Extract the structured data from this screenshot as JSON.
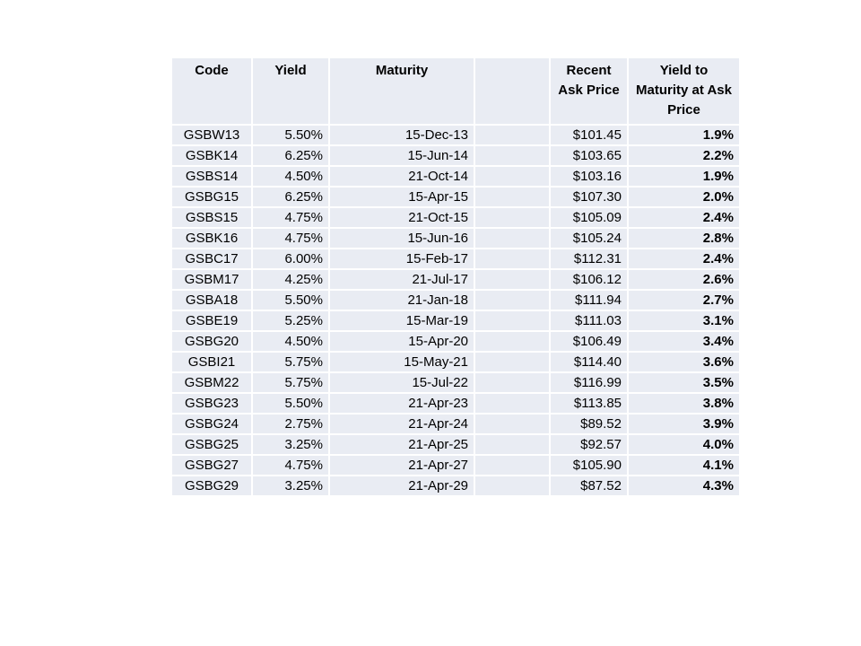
{
  "colors": {
    "page_background": "#FFFFFF",
    "cell_background": "#E9ECF3",
    "grid_lines": "#FFFFFF",
    "text": "#000000"
  },
  "chart_data": {
    "type": "table",
    "columns": [
      {
        "id": "code",
        "label": "Code"
      },
      {
        "id": "yield",
        "label": "Yield"
      },
      {
        "id": "maturity",
        "label": "Maturity"
      },
      {
        "id": "spacer",
        "label": ""
      },
      {
        "id": "ask_price",
        "label": "Recent Ask Price"
      },
      {
        "id": "ytm",
        "label": "Yield to Maturity at Ask Price"
      }
    ],
    "rows": [
      {
        "code": "GSBW13",
        "yield": "5.50%",
        "maturity": "15-Dec-13",
        "spacer": "",
        "ask_price": "$101.45",
        "ytm": "1.9%"
      },
      {
        "code": "GSBK14",
        "yield": "6.25%",
        "maturity": "15-Jun-14",
        "spacer": "",
        "ask_price": "$103.65",
        "ytm": "2.2%"
      },
      {
        "code": "GSBS14",
        "yield": "4.50%",
        "maturity": "21-Oct-14",
        "spacer": "",
        "ask_price": "$103.16",
        "ytm": "1.9%"
      },
      {
        "code": "GSBG15",
        "yield": "6.25%",
        "maturity": "15-Apr-15",
        "spacer": "",
        "ask_price": "$107.30",
        "ytm": "2.0%"
      },
      {
        "code": "GSBS15",
        "yield": "4.75%",
        "maturity": "21-Oct-15",
        "spacer": "",
        "ask_price": "$105.09",
        "ytm": "2.4%"
      },
      {
        "code": "GSBK16",
        "yield": "4.75%",
        "maturity": "15-Jun-16",
        "spacer": "",
        "ask_price": "$105.24",
        "ytm": "2.8%"
      },
      {
        "code": "GSBC17",
        "yield": "6.00%",
        "maturity": "15-Feb-17",
        "spacer": "",
        "ask_price": "$112.31",
        "ytm": "2.4%"
      },
      {
        "code": "GSBM17",
        "yield": "4.25%",
        "maturity": "21-Jul-17",
        "spacer": "",
        "ask_price": "$106.12",
        "ytm": "2.6%"
      },
      {
        "code": "GSBA18",
        "yield": "5.50%",
        "maturity": "21-Jan-18",
        "spacer": "",
        "ask_price": "$111.94",
        "ytm": "2.7%"
      },
      {
        "code": "GSBE19",
        "yield": "5.25%",
        "maturity": "15-Mar-19",
        "spacer": "",
        "ask_price": "$111.03",
        "ytm": "3.1%"
      },
      {
        "code": "GSBG20",
        "yield": "4.50%",
        "maturity": "15-Apr-20",
        "spacer": "",
        "ask_price": "$106.49",
        "ytm": "3.4%"
      },
      {
        "code": "GSBI21",
        "yield": "5.75%",
        "maturity": "15-May-21",
        "spacer": "",
        "ask_price": "$114.40",
        "ytm": "3.6%"
      },
      {
        "code": "GSBM22",
        "yield": "5.75%",
        "maturity": "15-Jul-22",
        "spacer": "",
        "ask_price": "$116.99",
        "ytm": "3.5%"
      },
      {
        "code": "GSBG23",
        "yield": "5.50%",
        "maturity": "21-Apr-23",
        "spacer": "",
        "ask_price": "$113.85",
        "ytm": "3.8%"
      },
      {
        "code": "GSBG24",
        "yield": "2.75%",
        "maturity": "21-Apr-24",
        "spacer": "",
        "ask_price": "$89.52",
        "ytm": "3.9%"
      },
      {
        "code": "GSBG25",
        "yield": "3.25%",
        "maturity": "21-Apr-25",
        "spacer": "",
        "ask_price": "$92.57",
        "ytm": "4.0%"
      },
      {
        "code": "GSBG27",
        "yield": "4.75%",
        "maturity": "21-Apr-27",
        "spacer": "",
        "ask_price": "$105.90",
        "ytm": "4.1%"
      },
      {
        "code": "GSBG29",
        "yield": "3.25%",
        "maturity": "21-Apr-29",
        "spacer": "",
        "ask_price": "$87.52",
        "ytm": "4.3%"
      }
    ]
  }
}
